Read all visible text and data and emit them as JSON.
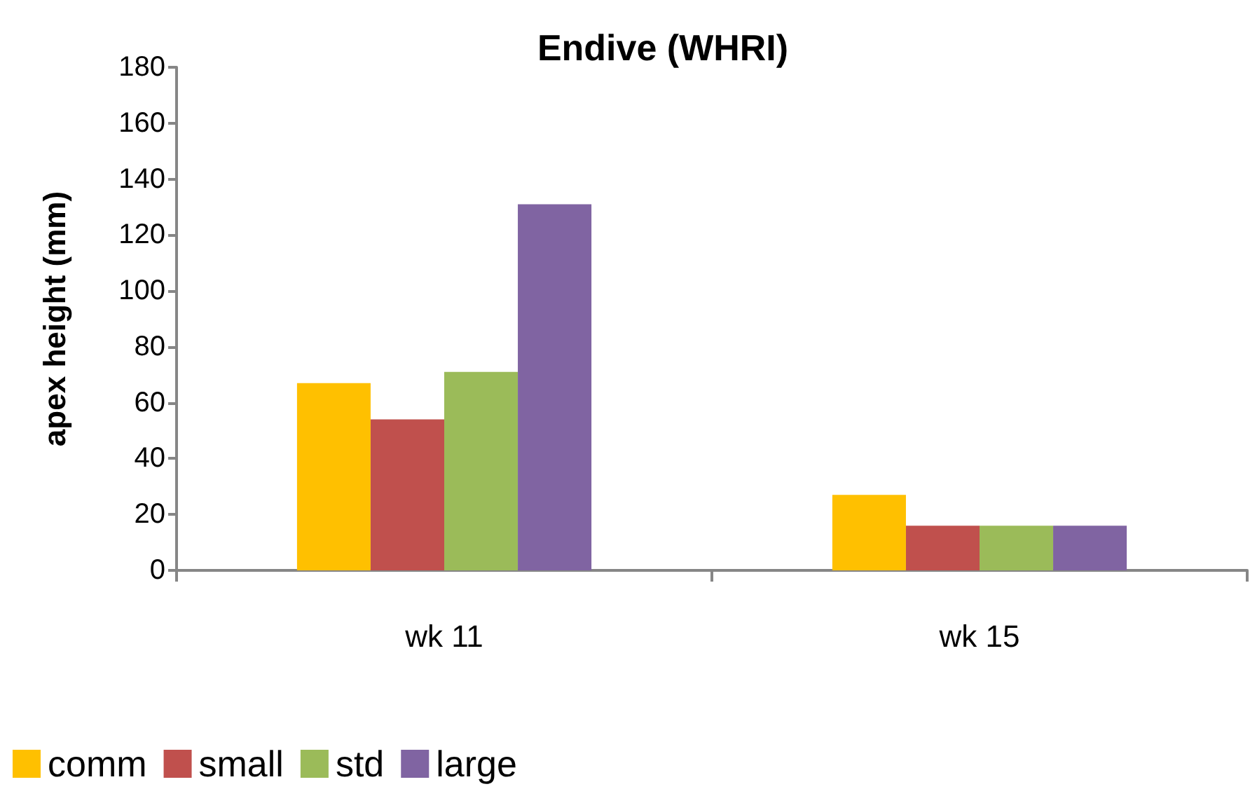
{
  "chart_data": {
    "type": "bar",
    "title": "Endive (WHRI)",
    "ylabel": "apex height (mm)",
    "categories": [
      "wk 11",
      "wk 15"
    ],
    "series": [
      {
        "name": "comm",
        "color": "#ffc000",
        "values": [
          67,
          27
        ]
      },
      {
        "name": "small",
        "color": "#c0504d",
        "values": [
          54,
          16
        ]
      },
      {
        "name": "std",
        "color": "#9bbb59",
        "values": [
          71,
          16
        ]
      },
      {
        "name": "large",
        "color": "#8064a2",
        "values": [
          131,
          16
        ]
      }
    ],
    "ylim": [
      0,
      180
    ],
    "yticks": [
      0,
      20,
      40,
      60,
      80,
      100,
      120,
      140,
      160,
      180
    ],
    "grid": false,
    "legend": "bottom left"
  }
}
